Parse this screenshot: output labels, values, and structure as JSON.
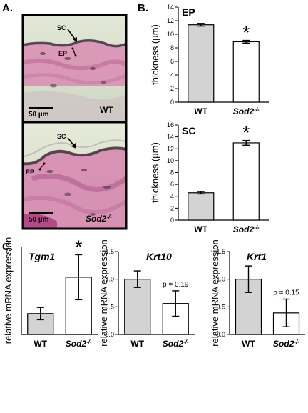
{
  "panels": {
    "a": {
      "label": "A.",
      "images": [
        {
          "annotations": [
            "SC",
            "EP"
          ],
          "scale_bar": "50 µm",
          "genotype": "WT"
        },
        {
          "annotations": [
            "SC",
            "EP"
          ],
          "scale_bar": "50 µm",
          "genotype": "Sod2",
          "genotype_sup": "-/-"
        }
      ]
    },
    "b": {
      "label": "B."
    },
    "c": {
      "label": "C."
    }
  },
  "colors": {
    "wt_fill": "#d3d3d3",
    "sod2_fill": "#ffffff",
    "outline": "#000000",
    "tissue_pink": "#d07aa8",
    "tissue_bg": "#dde4cf",
    "frame": "#000000"
  },
  "chart_data": [
    {
      "id": "B-EP",
      "type": "bar",
      "title": "EP",
      "categories": [
        "WT",
        "Sod2-/-"
      ],
      "values": [
        11.4,
        8.9
      ],
      "errors": [
        0.2,
        0.2
      ],
      "ylabel": "thickness (µm)",
      "ylim": [
        0,
        14
      ],
      "yticks": [
        0,
        2,
        4,
        6,
        8,
        10,
        12,
        14
      ],
      "annotations": [
        {
          "category": "Sod2-/-",
          "text": "*"
        }
      ]
    },
    {
      "id": "B-SC",
      "type": "bar",
      "title": "SC",
      "categories": [
        "WT",
        "Sod2-/-"
      ],
      "values": [
        4.6,
        13.0
      ],
      "errors": [
        0.2,
        0.4
      ],
      "ylabel": "thickness (µm)",
      "ylim": [
        0,
        16
      ],
      "yticks": [
        0,
        2,
        4,
        6,
        8,
        10,
        12,
        14,
        16
      ],
      "annotations": [
        {
          "category": "Sod2-/-",
          "text": "*"
        }
      ]
    },
    {
      "id": "C-Tgm1",
      "type": "bar",
      "title": "Tgm1",
      "categories": [
        "WT",
        "Sod2-/-"
      ],
      "values": [
        1.02,
        2.8
      ],
      "errors": [
        0.3,
        1.1
      ],
      "ylabel": "relative mRNA expression",
      "ylim": [
        0,
        4.3
      ],
      "yticks": [],
      "annotations": [
        {
          "category": "Sod2-/-",
          "text": "*"
        }
      ]
    },
    {
      "id": "C-Krt10",
      "type": "bar",
      "title": "Krt10",
      "categories": [
        "WT",
        "Sod2-/-"
      ],
      "values": [
        1.0,
        0.56
      ],
      "errors": [
        0.15,
        0.23
      ],
      "ylabel": "relative mRNA expression",
      "ylim": [
        0,
        1.5
      ],
      "yticks": [
        "0.0",
        "0.5",
        "1.0",
        "1.5"
      ],
      "annotations": [
        {
          "category": "Sod2-/-",
          "text": "p = 0.19"
        }
      ]
    },
    {
      "id": "C-Krt1",
      "type": "bar",
      "title": "Krt1",
      "categories": [
        "WT",
        "Sod2-/-"
      ],
      "values": [
        1.0,
        0.39
      ],
      "errors": [
        0.24,
        0.25
      ],
      "ylabel": "relative mRNA expression",
      "ylim": [
        0,
        1.5
      ],
      "yticks": [
        "0.0",
        "0.5",
        "1.0",
        "1.5"
      ],
      "annotations": [
        {
          "category": "Sod2-/-",
          "text": "p = 0.15"
        }
      ]
    }
  ]
}
